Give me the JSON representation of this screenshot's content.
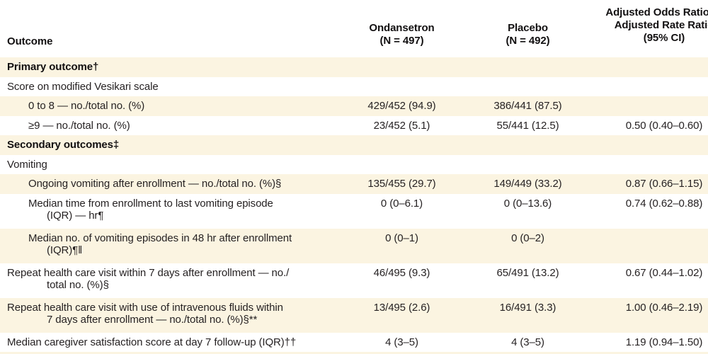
{
  "colors": {
    "row_shade": "#fbf4e1",
    "text": "#262223",
    "heading_text": "#121011"
  },
  "table": {
    "header": {
      "outcome": "Outcome",
      "ondansetron_lines": [
        "Ondansetron",
        "(N = 497)"
      ],
      "placebo_lines": [
        "Placebo",
        "(N = 492)"
      ],
      "aor_lines": [
        "Adjusted Odds Ratio or",
        "Adjusted Rate Ratio",
        "(95% CI)"
      ]
    },
    "rows": [
      {
        "label_lines": [
          "Primary outcome†"
        ],
        "style": "section",
        "indent": 0,
        "shaded": true,
        "ondansetron": "",
        "placebo": "",
        "aor": ""
      },
      {
        "label_lines": [
          "Score on modified Vesikari scale"
        ],
        "style": "normal",
        "indent": 0,
        "shaded": false,
        "ondansetron": "",
        "placebo": "",
        "aor": ""
      },
      {
        "label_lines": [
          "0 to 8 — no./total no. (%)"
        ],
        "style": "normal",
        "indent": 1,
        "shaded": true,
        "ondansetron": "429/452 (94.9)",
        "placebo": "386/441 (87.5)",
        "aor": ""
      },
      {
        "label_lines": [
          "≥9 — no./total no. (%)"
        ],
        "style": "normal",
        "indent": 1,
        "shaded": false,
        "ondansetron": "23/452 (5.1)",
        "placebo": "55/441 (12.5)",
        "aor": "0.50 (0.40–0.60)"
      },
      {
        "label_lines": [
          "Secondary outcomes‡"
        ],
        "style": "section",
        "indent": 0,
        "shaded": true,
        "ondansetron": "",
        "placebo": "",
        "aor": ""
      },
      {
        "label_lines": [
          "Vomiting"
        ],
        "style": "normal",
        "indent": 0,
        "shaded": false,
        "ondansetron": "",
        "placebo": "",
        "aor": ""
      },
      {
        "label_lines": [
          "Ongoing vomiting after enrollment — no./total no. (%)§"
        ],
        "style": "normal",
        "indent": 1,
        "shaded": true,
        "ondansetron": "135/455 (29.7)",
        "placebo": "149/449 (33.2)",
        "aor": "0.87 (0.66–1.15)"
      },
      {
        "label_lines": [
          "Median time from enrollment to last vomiting episode",
          "(IQR) — hr¶"
        ],
        "style": "normal",
        "indent": 1,
        "shaded": false,
        "ondansetron": "0 (0–6.1)",
        "placebo": "0 (0–13.6)",
        "aor": "0.74 (0.62–0.88)"
      },
      {
        "label_lines": [
          "Median no. of vomiting episodes in 48 hr after enrollment",
          "(IQR)¶‖"
        ],
        "style": "normal",
        "indent": 1,
        "shaded": true,
        "ondansetron": "0 (0–1)",
        "placebo": "0 (0–2)",
        "aor": ""
      },
      {
        "label_lines": [
          "Repeat health care visit within 7 days after enrollment — no./",
          "total no. (%)§"
        ],
        "style": "normal",
        "indent": 0,
        "shaded": false,
        "ondansetron": "46/495 (9.3)",
        "placebo": "65/491 (13.2)",
        "aor": "0.67 (0.44–1.02)"
      },
      {
        "label_lines": [
          "Repeat health care visit with use of intravenous fluids within",
          "7 days after enrollment — no./total no. (%)§**"
        ],
        "style": "normal",
        "indent": 0,
        "shaded": true,
        "ondansetron": "13/495 (2.6)",
        "placebo": "16/491 (3.3)",
        "aor": "1.00 (0.46–2.19)"
      },
      {
        "label_lines": [
          "Median caregiver satisfaction score at day 7 follow-up (IQR)††"
        ],
        "style": "normal",
        "indent": 0,
        "shaded": false,
        "ondansetron": "4 (3–5)",
        "placebo": "4 (3–5)",
        "aor": "1.19 (0.94–1.50)"
      }
    ]
  }
}
